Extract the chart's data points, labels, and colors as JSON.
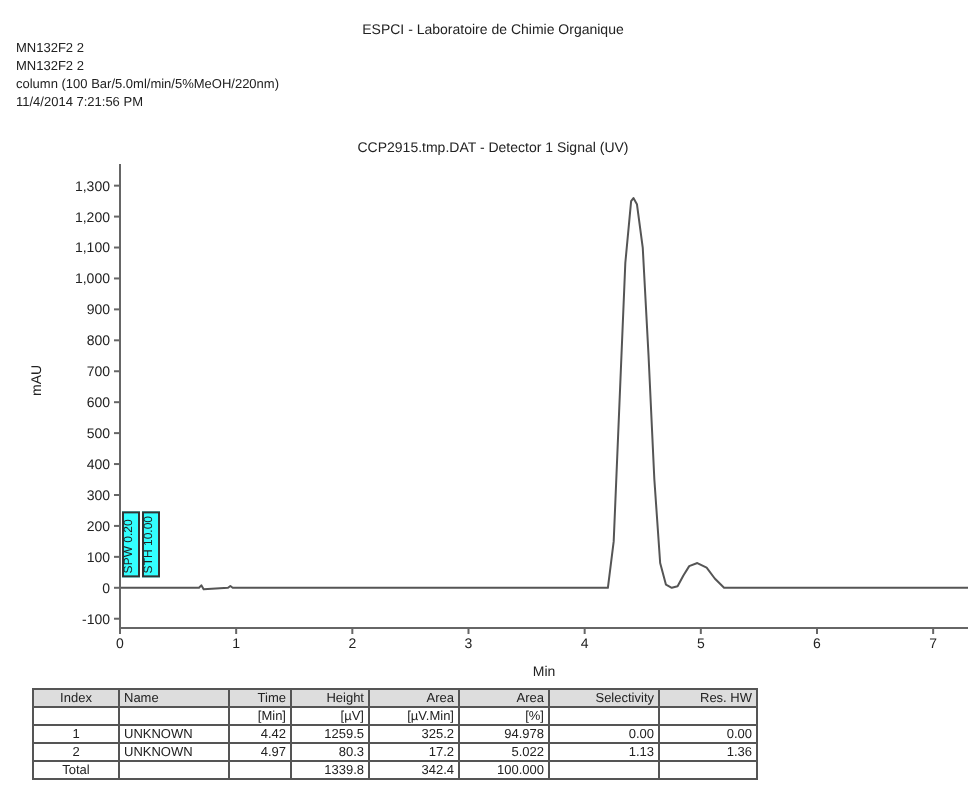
{
  "chart_data": {
    "type": "line",
    "title": "ESPCI - Laboratoire de Chimie Organique",
    "subtitle": "CCP2915.tmp.DAT - Detector 1 Signal (UV)",
    "xlabel": "Min",
    "ylabel": "mAU",
    "annotations": [
      "MN132F2 2",
      "MN132F2 2",
      "column (100 Bar/5.0ml/min/5%MeOH/220nm)",
      "11/4/2014 7:21:56 PM",
      "SPW 0.20",
      "STH 10.00",
      "Index",
      "Name",
      "Time",
      "Height",
      "Area",
      "Area",
      "Selectivity",
      "Res. HW",
      null,
      null,
      "[Min]",
      "[µV]",
      "[µV.Min]",
      "[%]",
      null,
      null,
      "1",
      "UNKNOWN",
      "4.42",
      "1259.5",
      "325.2",
      "94.978",
      "0.00",
      "0.00",
      "2",
      "UNKNOWN",
      "4.97",
      "80.3",
      "17.2",
      "5.022",
      "1.13",
      "1.36",
      "Total",
      null,
      null,
      "1339.8",
      "342.4",
      "100.000",
      null,
      null
    ],
    "x": [
      0,
      0.68,
      0.7,
      0.72,
      0.93,
      0.95,
      0.97,
      4.15,
      4.2,
      4.25,
      4.3,
      4.35,
      4.4,
      4.42,
      4.45,
      4.5,
      4.55,
      4.6,
      4.65,
      4.7,
      4.75,
      4.8,
      4.85,
      4.9,
      4.97,
      5.05,
      5.12,
      5.2,
      7.3
    ],
    "series": [
      {
        "color": "#555555",
        "values": [
          0,
          0,
          8,
          -5,
          0,
          6,
          0,
          0,
          0,
          150,
          600,
          1050,
          1250,
          1260,
          1240,
          1100,
          750,
          350,
          80,
          10,
          0,
          5,
          40,
          70,
          80,
          65,
          30,
          0,
          0
        ]
      }
    ],
    "xlim": [
      0,
      7.3
    ],
    "xticks": [
      0,
      1,
      2,
      3,
      4,
      5,
      6,
      7
    ],
    "ylim": [
      -130,
      1370
    ],
    "yticks": [
      {
        "value": -100,
        "label": "-100"
      },
      0,
      100,
      200,
      300,
      400,
      500,
      600,
      700,
      800,
      900,
      {
        "value": 1000,
        "label": "1,000"
      },
      {
        "value": 1100,
        "label": "1,100"
      },
      {
        "value": 1200,
        "label": "1,200"
      },
      {
        "value": 1300,
        "label": "1,300"
      }
    ],
    "grid": false,
    "legend": false,
    "marker": "none",
    "line_style": "solid"
  }
}
